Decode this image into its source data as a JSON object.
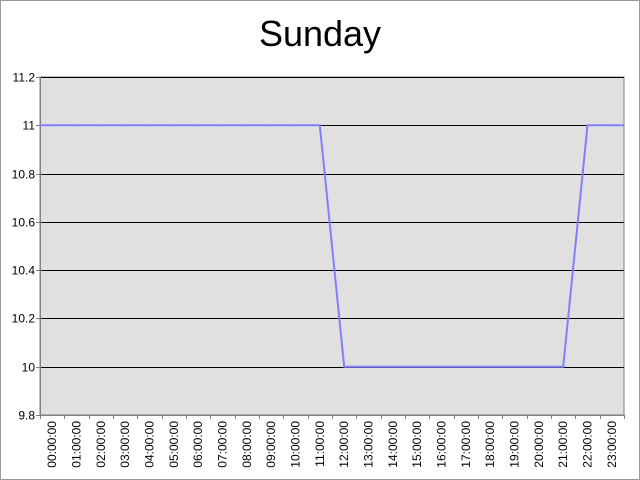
{
  "chart_data": {
    "type": "line",
    "title": "Sunday",
    "xlabel": "",
    "ylabel": "",
    "grid": true,
    "ylim": [
      9.8,
      11.2
    ],
    "yticks": [
      9.8,
      10,
      10.2,
      10.4,
      10.6,
      10.8,
      11,
      11.2
    ],
    "ytick_labels": [
      "9.8",
      "10",
      "10.2",
      "10.4",
      "10.6",
      "10.8",
      "11",
      "11.2"
    ],
    "categories": [
      "00:00:00",
      "01:00:00",
      "02:00:00",
      "03:00:00",
      "04:00:00",
      "05:00:00",
      "06:00:00",
      "07:00:00",
      "08:00:00",
      "09:00:00",
      "10:00:00",
      "11:00:00",
      "12:00:00",
      "13:00:00",
      "14:00:00",
      "15:00:00",
      "16:00:00",
      "17:00:00",
      "18:00:00",
      "19:00:00",
      "20:00:00",
      "21:00:00",
      "22:00:00",
      "23:00:00"
    ],
    "series": [
      {
        "name": "Sunday",
        "color": "#8080ff",
        "values": [
          11,
          11,
          11,
          11,
          11,
          11,
          11,
          11,
          11,
          11,
          11,
          11,
          10,
          10,
          10,
          10,
          10,
          10,
          10,
          10,
          10,
          10,
          11,
          11
        ]
      }
    ],
    "colors": {
      "plot_background": "#e0e0e0",
      "gridline": "#000000",
      "axis": "#808080"
    }
  }
}
